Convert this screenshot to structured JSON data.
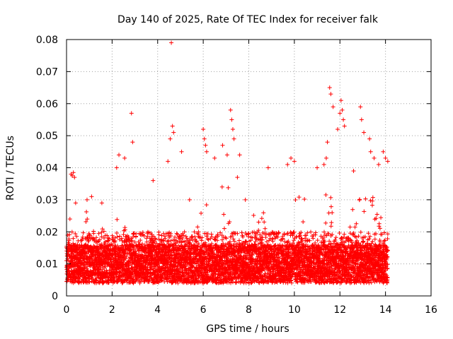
{
  "chart_data": {
    "type": "scatter",
    "title": "Day 140 of 2025, Rate Of TEC Index for receiver falk",
    "xlabel": "GPS time / hours",
    "ylabel": "ROTI / TECUs",
    "xlim": [
      0,
      16
    ],
    "ylim": [
      0,
      0.08
    ],
    "x_ticks": [
      0,
      2,
      4,
      6,
      8,
      10,
      12,
      14,
      16
    ],
    "y_ticks": [
      0,
      0.01,
      0.02,
      0.03,
      0.04,
      0.05,
      0.06,
      0.07,
      0.08
    ],
    "x_tick_labels": [
      "0",
      "2",
      "4",
      "6",
      "8",
      "10",
      "12",
      "14",
      "16"
    ],
    "y_tick_labels": [
      "0",
      "0.01",
      "0.02",
      "0.03",
      "0.04",
      "0.05",
      "0.06",
      "0.07",
      "0.08"
    ],
    "grid": true,
    "marker": "+",
    "color": "#ff0000",
    "series": [
      {
        "name": "ROTI",
        "x": [
          0.2,
          0.25,
          0.3,
          0.35,
          0.15,
          0.4,
          0.9,
          1.1,
          1.55,
          2.2,
          2.3,
          2.55,
          2.85,
          2.9,
          3.8,
          4.45,
          4.55,
          4.6,
          4.65,
          4.7,
          5.05,
          5.4,
          6.0,
          6.05,
          6.1,
          6.15,
          6.5,
          6.85,
          7.05,
          7.2,
          7.25,
          7.3,
          7.35,
          7.5,
          7.6,
          7.85,
          8.85,
          9.7,
          9.85,
          10.0,
          11.0,
          11.3,
          11.4,
          11.45,
          11.55,
          11.6,
          11.7,
          11.9,
          12.0,
          12.05,
          12.1,
          12.15,
          12.2,
          12.6,
          12.9,
          12.95,
          13.05,
          13.3,
          13.35,
          13.5,
          13.7,
          13.9,
          14.0,
          14.1
        ],
        "y": [
          0.038,
          0.0375,
          0.0385,
          0.037,
          0.024,
          0.029,
          0.03,
          0.031,
          0.029,
          0.04,
          0.044,
          0.043,
          0.057,
          0.048,
          0.036,
          0.042,
          0.049,
          0.079,
          0.053,
          0.051,
          0.045,
          0.03,
          0.052,
          0.049,
          0.047,
          0.045,
          0.043,
          0.047,
          0.044,
          0.058,
          0.055,
          0.052,
          0.049,
          0.037,
          0.044,
          0.03,
          0.04,
          0.041,
          0.043,
          0.042,
          0.04,
          0.041,
          0.043,
          0.048,
          0.065,
          0.063,
          0.059,
          0.052,
          0.057,
          0.061,
          0.058,
          0.055,
          0.053,
          0.039,
          0.059,
          0.055,
          0.051,
          0.049,
          0.045,
          0.043,
          0.041,
          0.045,
          0.043,
          0.042
        ]
      }
    ],
    "dense_band": {
      "description_note": "Main ROTI band across the day",
      "x_range": [
        0.0,
        14.1
      ],
      "typical_min": 0.004,
      "typical_max": 0.02,
      "baseline": 0.011,
      "active_periods": [
        [
          0.8,
          1.2,
          0.027
        ],
        [
          1.4,
          1.8,
          0.024
        ],
        [
          2.2,
          2.6,
          0.026
        ],
        [
          5.7,
          6.3,
          0.035
        ],
        [
          6.6,
          7.4,
          0.036
        ],
        [
          8.2,
          8.8,
          0.027
        ],
        [
          10.0,
          10.5,
          0.031
        ],
        [
          11.2,
          11.9,
          0.033
        ],
        [
          12.4,
          13.9,
          0.031
        ]
      ]
    }
  }
}
